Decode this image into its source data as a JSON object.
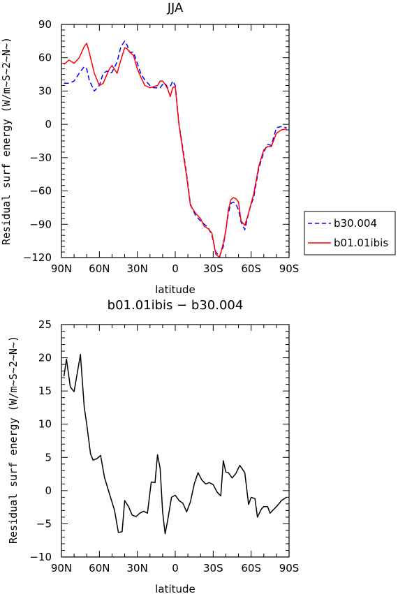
{
  "chart_data": [
    {
      "type": "line",
      "title": "JJA",
      "xlabel": "latitude",
      "ylabel": "Residual surf energy (W/m~S~2~N~)",
      "xlim": [
        90,
        -90
      ],
      "ylim": [
        -120,
        90
      ],
      "x_ticks": [
        90,
        60,
        30,
        0,
        -30,
        -60,
        -90
      ],
      "x_tick_labels": [
        "90N",
        "60N",
        "30N",
        "0",
        "30S",
        "60S",
        "90S"
      ],
      "y_ticks": [
        -120,
        -90,
        -60,
        -30,
        0,
        30,
        60,
        90
      ],
      "y_tick_labels": [
        "−120",
        "−90",
        "−60",
        "−30",
        "0",
        "30",
        "60",
        "90"
      ],
      "legend_position": "outside-right",
      "x": [
        88,
        84,
        80,
        76,
        72,
        70,
        68,
        64,
        60,
        57,
        54,
        52,
        50,
        46,
        43,
        40,
        38,
        36,
        33,
        30,
        27,
        24,
        20,
        17,
        14,
        12,
        10,
        8,
        6,
        4,
        2,
        0,
        -3,
        -6,
        -9,
        -12,
        -16,
        -20,
        -23,
        -26,
        -29,
        -32,
        -35,
        -38,
        -40,
        -42,
        -44,
        -46,
        -48,
        -50,
        -52,
        -55,
        -58,
        -60,
        -62,
        -66,
        -70,
        -73,
        -76,
        -80,
        -84,
        -88
      ],
      "series": [
        {
          "name": "b30.004",
          "color": "#0000ff",
          "dash": "dashed",
          "values": [
            37,
            37,
            39,
            46,
            52,
            50,
            40,
            30,
            35,
            46,
            48,
            46,
            47,
            56,
            70,
            75,
            71,
            65,
            65,
            55,
            45,
            40,
            35,
            33,
            33,
            33,
            36,
            37,
            33,
            34,
            39,
            35,
            0,
            -22,
            -45,
            -72,
            -82,
            -87,
            -90,
            -93,
            -100,
            -115,
            -119,
            -110,
            -95,
            -80,
            -71,
            -70,
            -72,
            -77,
            -88,
            -95,
            -80,
            -72,
            -66,
            -40,
            -25,
            -18,
            -19,
            -3,
            -2,
            -3
          ]
        },
        {
          "name": "b01.01ibis",
          "color": "#ff0000",
          "dash": "solid",
          "values": [
            54,
            58,
            55,
            60,
            70,
            73,
            65,
            46,
            35,
            37,
            45,
            50,
            53,
            46,
            58,
            69,
            68,
            65,
            62,
            50,
            42,
            35,
            33,
            34,
            35,
            39,
            39,
            36,
            32,
            25,
            33,
            34,
            -1,
            -24,
            -47,
            -73,
            -80,
            -85,
            -92,
            -94,
            -98,
            -117,
            -120,
            -107,
            -96,
            -77,
            -68,
            -66,
            -67,
            -70,
            -87,
            -91,
            -80,
            -71,
            -63,
            -38,
            -23,
            -20,
            -20,
            -8,
            -5,
            -4
          ]
        }
      ]
    },
    {
      "type": "line",
      "title": "b01.01ibis − b30.004",
      "xlabel": "latitude",
      "ylabel": "Residual surf energy (W/m~S~2~N~)",
      "xlim": [
        90,
        -90
      ],
      "ylim": [
        -10,
        25
      ],
      "x_ticks": [
        90,
        60,
        30,
        0,
        -30,
        -60,
        -90
      ],
      "x_tick_labels": [
        "90N",
        "60N",
        "30N",
        "0",
        "30S",
        "60S",
        "90S"
      ],
      "y_ticks": [
        -10,
        -5,
        0,
        5,
        10,
        15,
        20,
        25
      ],
      "y_tick_labels": [
        "−10",
        "−5",
        "0",
        "5",
        "10",
        "15",
        "20",
        "25"
      ],
      "x": [
        88,
        86,
        83,
        80,
        75,
        72,
        70,
        67,
        65,
        62,
        59,
        56,
        52,
        48,
        45,
        42,
        40,
        37,
        34,
        31,
        28,
        25,
        22,
        19,
        16,
        14,
        12,
        10,
        8,
        6,
        3,
        0,
        -3,
        -6,
        -9,
        -12,
        -15,
        -18,
        -21,
        -24,
        -27,
        -30,
        -33,
        -36,
        -38,
        -40,
        -42,
        -45,
        -48,
        -51,
        -55,
        -58,
        -60,
        -63,
        -65,
        -68,
        -70,
        -73,
        -75,
        -78,
        -81,
        -84,
        -88
      ],
      "series": [
        {
          "color": "#000000",
          "values": [
            17.2,
            19.8,
            15.6,
            14.9,
            20.5,
            12.6,
            10,
            5.5,
            4.6,
            4.8,
            5.3,
            2,
            -0.5,
            -3,
            -6.3,
            -6.2,
            -1.5,
            -2.4,
            -3.7,
            -3.9,
            -3.4,
            -3.1,
            -3.4,
            1.3,
            1.2,
            5.4,
            3.4,
            -3.2,
            -6.5,
            -4.5,
            -1,
            -0.7,
            -1.5,
            -1.9,
            -3.2,
            -1.7,
            1,
            2.7,
            1.6,
            1,
            1.2,
            0.9,
            -0.2,
            -0.8,
            4.5,
            2.8,
            2.7,
            1.9,
            2.6,
            3.8,
            2.7,
            -2.1,
            -1,
            -1.2,
            -4,
            -2.8,
            -2.4,
            -2.4,
            -3.4,
            -2.8,
            -2.2,
            -1.5,
            -1
          ]
        }
      ]
    }
  ]
}
